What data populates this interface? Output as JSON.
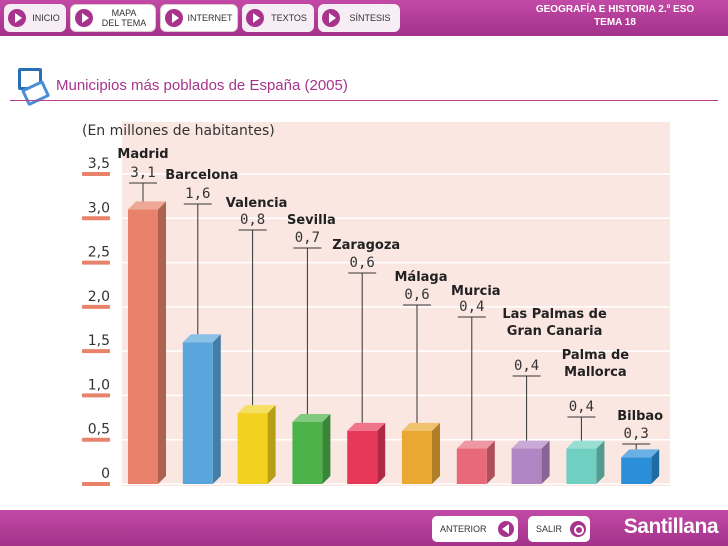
{
  "nav": {
    "items": [
      {
        "id": "inicio",
        "label": "INICIO"
      },
      {
        "id": "mapa",
        "label_line1": "MAPA",
        "label_line2": "DEL TEMA"
      },
      {
        "id": "internet",
        "label": "INTERNET"
      },
      {
        "id": "textos",
        "label": "TEXTOS"
      },
      {
        "id": "sintesis",
        "label": "SÍNTESIS"
      }
    ]
  },
  "header": {
    "line1": "GEOGRAFÍA E HISTORIA 2.º ESO",
    "line2": "TEMA 18"
  },
  "page_title": "Municipios más poblados de España (2005)",
  "chart_data": {
    "type": "bar",
    "title": "(En millones de habitantes)",
    "categories": [
      "Madrid",
      "Barcelona",
      "Valencia",
      "Sevilla",
      "Zaragoza",
      "Málaga",
      "Murcia",
      "Las Palmas de Gran Canaria",
      "Palma de Mallorca",
      "Bilbao"
    ],
    "category_lines": [
      [
        "Madrid"
      ],
      [
        "Barcelona"
      ],
      [
        "Valencia"
      ],
      [
        "Sevilla"
      ],
      [
        "Zaragoza"
      ],
      [
        "Málaga"
      ],
      [
        "Murcia"
      ],
      [
        "Las Palmas de",
        "Gran Canaria"
      ],
      [
        "Palma de",
        "Mallorca"
      ],
      [
        "Bilbao"
      ]
    ],
    "values": [
      3.1,
      1.6,
      0.8,
      0.7,
      0.6,
      0.6,
      0.4,
      0.4,
      0.4,
      0.3
    ],
    "value_labels": [
      "3,1",
      "1,6",
      "0,8",
      "0,7",
      "0,6",
      "0,6",
      "0,4",
      "0,4",
      "0,4",
      "0,3"
    ],
    "yticks": [
      0,
      0.5,
      1.0,
      1.5,
      2.0,
      2.5,
      3.0,
      3.5
    ],
    "ytick_labels": [
      "0",
      "0,5",
      "1,0",
      "1,5",
      "2,0",
      "2,5",
      "3,0",
      "3,5"
    ],
    "ylim": [
      0,
      3.5
    ],
    "bar_colors": [
      "#e8826a",
      "#5aa6dc",
      "#f2d21e",
      "#4cb34a",
      "#e8385a",
      "#eaa832",
      "#e86a7a",
      "#b286c4",
      "#6fcfc0",
      "#2a8ed8"
    ],
    "grid": true
  },
  "footer": {
    "prev_label": "ANTERIOR",
    "exit_label": "SALIR",
    "brand": "Santillana"
  },
  "colors": {
    "accent": "#a8338c",
    "chart_bg": "#fbe7e2",
    "grid": "#ffffff",
    "tick_mark": "#e8826a"
  }
}
